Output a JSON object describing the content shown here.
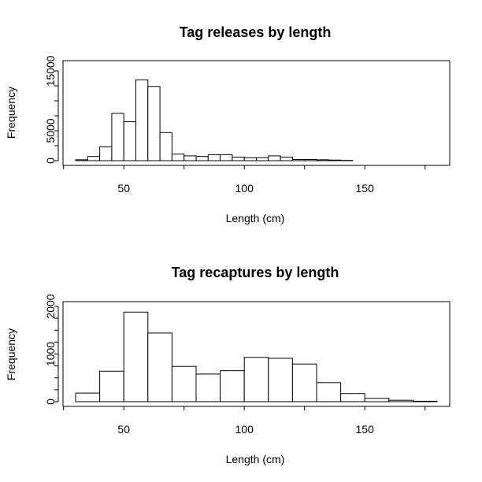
{
  "chart_data": [
    {
      "type": "bar",
      "title": "Tag releases by length",
      "xlabel": "Length (cm)",
      "ylabel": "Frequency",
      "bin_edges": [
        30,
        35,
        40,
        45,
        50,
        55,
        60,
        65,
        70,
        75,
        80,
        85,
        90,
        95,
        100,
        105,
        110,
        115,
        120,
        125,
        130,
        135,
        140,
        145
      ],
      "values": [
        150,
        700,
        2300,
        7900,
        6500,
        13500,
        12400,
        4700,
        1100,
        800,
        700,
        1000,
        1000,
        600,
        500,
        500,
        800,
        600,
        200,
        200,
        150,
        100,
        50
      ],
      "xlim": [
        30,
        180
      ],
      "ylim": [
        0,
        15000
      ],
      "xticks": [
        50,
        100,
        150
      ],
      "yticks": [
        0,
        5000,
        15000
      ],
      "xtick_labels": [
        "50",
        "100",
        "150"
      ],
      "ytick_labels": [
        "0",
        "5000",
        "15000"
      ],
      "grid": false
    },
    {
      "type": "bar",
      "title": "Tag recaptures by length",
      "xlabel": "Length (cm)",
      "ylabel": "Frequency",
      "bin_edges": [
        30,
        40,
        50,
        60,
        70,
        80,
        90,
        100,
        110,
        120,
        130,
        140,
        150,
        160,
        170,
        180
      ],
      "values": [
        180,
        640,
        1880,
        1440,
        740,
        580,
        650,
        930,
        910,
        790,
        400,
        170,
        70,
        30,
        10
      ],
      "xlim": [
        30,
        180
      ],
      "ylim": [
        0,
        2000
      ],
      "xticks": [
        50,
        100,
        150
      ],
      "yticks": [
        0,
        1000,
        2000
      ],
      "xtick_labels": [
        "50",
        "100",
        "150"
      ],
      "ytick_labels": [
        "0",
        "1000",
        "2000"
      ],
      "grid": false
    }
  ]
}
